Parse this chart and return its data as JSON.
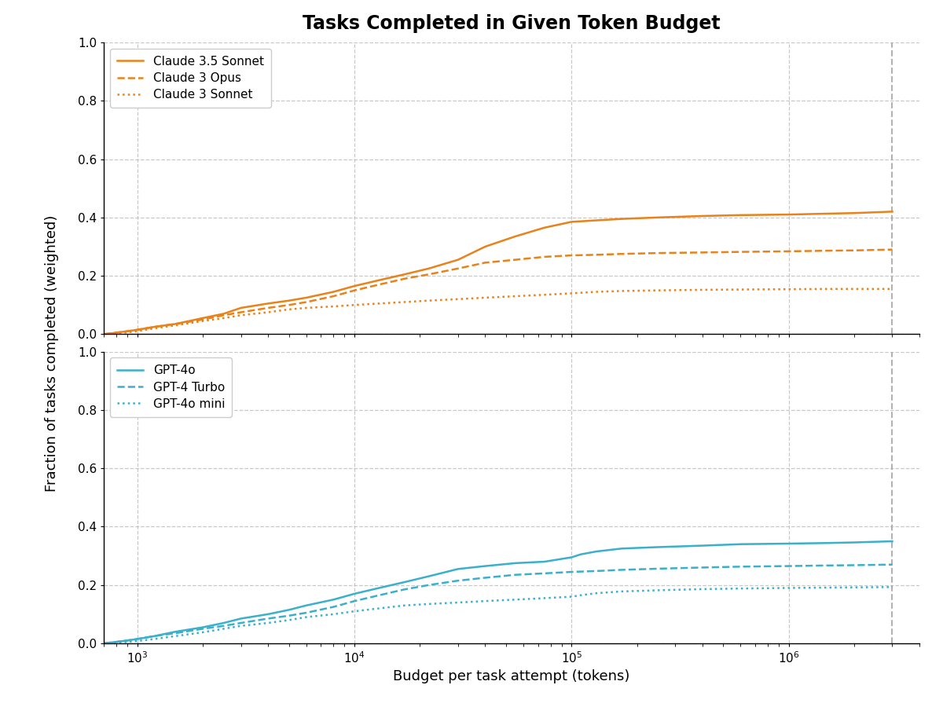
{
  "title": "Tasks Completed in Given Token Budget",
  "xlabel": "Budget per task attempt (tokens)",
  "ylabel": "Fraction of tasks completed (weighted)",
  "xlim_log": [
    700,
    4000000
  ],
  "ylim": [
    0.0,
    1.0
  ],
  "vline_x": 3000000,
  "background_color": "#ffffff",
  "grid_color": "#bbbbbb",
  "orange_color": "#e8821a",
  "blue_color": "#3ab0cc",
  "top_legend": [
    "Claude 3.5 Sonnet",
    "Claude 3 Opus",
    "Claude 3 Sonnet"
  ],
  "bottom_legend": [
    "GPT-4o",
    "GPT-4 Turbo",
    "GPT-4o mini"
  ],
  "top_solid_x": [
    700,
    800,
    900,
    1000,
    1200,
    1500,
    2000,
    2500,
    3000,
    4000,
    5000,
    6000,
    8000,
    10000,
    13000,
    17000,
    22000,
    30000,
    40000,
    55000,
    75000,
    100000,
    130000,
    170000,
    250000,
    400000,
    600000,
    1000000,
    1500000,
    2000000,
    3000000
  ],
  "top_solid_y": [
    0.0,
    0.005,
    0.01,
    0.015,
    0.025,
    0.035,
    0.055,
    0.07,
    0.09,
    0.105,
    0.115,
    0.125,
    0.145,
    0.165,
    0.185,
    0.205,
    0.225,
    0.255,
    0.3,
    0.335,
    0.365,
    0.385,
    0.39,
    0.395,
    0.4,
    0.405,
    0.408,
    0.41,
    0.413,
    0.415,
    0.42
  ],
  "top_dashed_x": [
    700,
    800,
    900,
    1000,
    1200,
    1500,
    2000,
    2500,
    3000,
    4000,
    5000,
    6000,
    8000,
    10000,
    13000,
    17000,
    22000,
    30000,
    40000,
    55000,
    75000,
    100000,
    130000,
    170000,
    250000,
    400000,
    600000,
    1000000,
    1500000,
    2000000,
    3000000
  ],
  "top_dashed_y": [
    0.0,
    0.005,
    0.01,
    0.015,
    0.025,
    0.035,
    0.05,
    0.065,
    0.075,
    0.09,
    0.1,
    0.11,
    0.13,
    0.15,
    0.17,
    0.19,
    0.205,
    0.225,
    0.245,
    0.255,
    0.265,
    0.27,
    0.272,
    0.275,
    0.278,
    0.28,
    0.282,
    0.284,
    0.286,
    0.287,
    0.29
  ],
  "top_dotted_x": [
    700,
    800,
    900,
    1000,
    1200,
    1500,
    2000,
    2500,
    3000,
    4000,
    5000,
    6000,
    8000,
    10000,
    13000,
    17000,
    22000,
    30000,
    40000,
    55000,
    75000,
    100000,
    130000,
    170000,
    250000,
    400000,
    600000,
    1000000,
    1500000,
    2000000,
    3000000
  ],
  "top_dotted_y": [
    0.0,
    0.003,
    0.006,
    0.01,
    0.02,
    0.03,
    0.045,
    0.055,
    0.065,
    0.075,
    0.085,
    0.09,
    0.095,
    0.1,
    0.105,
    0.11,
    0.115,
    0.12,
    0.125,
    0.13,
    0.135,
    0.14,
    0.145,
    0.148,
    0.15,
    0.152,
    0.153,
    0.154,
    0.155,
    0.155,
    0.155
  ],
  "bot_solid_x": [
    700,
    800,
    900,
    1000,
    1200,
    1500,
    2000,
    2500,
    3000,
    4000,
    5000,
    6000,
    8000,
    10000,
    13000,
    17000,
    22000,
    30000,
    40000,
    55000,
    75000,
    100000,
    110000,
    130000,
    170000,
    250000,
    400000,
    600000,
    1000000,
    1500000,
    2000000,
    3000000
  ],
  "bot_solid_y": [
    0.0,
    0.005,
    0.01,
    0.015,
    0.025,
    0.04,
    0.055,
    0.07,
    0.085,
    0.1,
    0.115,
    0.13,
    0.15,
    0.17,
    0.19,
    0.21,
    0.23,
    0.255,
    0.265,
    0.275,
    0.28,
    0.295,
    0.305,
    0.315,
    0.325,
    0.33,
    0.335,
    0.34,
    0.342,
    0.344,
    0.346,
    0.35
  ],
  "bot_dashed_x": [
    700,
    800,
    900,
    1000,
    1200,
    1500,
    2000,
    2500,
    3000,
    4000,
    5000,
    6000,
    8000,
    10000,
    13000,
    17000,
    22000,
    30000,
    40000,
    55000,
    75000,
    100000,
    130000,
    170000,
    250000,
    400000,
    600000,
    1000000,
    1500000,
    2000000,
    3000000
  ],
  "bot_dashed_y": [
    0.0,
    0.005,
    0.01,
    0.015,
    0.025,
    0.035,
    0.05,
    0.06,
    0.07,
    0.085,
    0.095,
    0.105,
    0.125,
    0.145,
    0.165,
    0.185,
    0.2,
    0.215,
    0.225,
    0.235,
    0.24,
    0.245,
    0.248,
    0.252,
    0.256,
    0.26,
    0.263,
    0.265,
    0.267,
    0.268,
    0.27
  ],
  "bot_dotted_x": [
    700,
    800,
    900,
    1000,
    1200,
    1500,
    2000,
    2500,
    3000,
    4000,
    5000,
    6000,
    8000,
    10000,
    13000,
    17000,
    22000,
    30000,
    40000,
    55000,
    75000,
    100000,
    110000,
    130000,
    170000,
    250000,
    400000,
    600000,
    1000000,
    1500000,
    2000000,
    3000000
  ],
  "bot_dotted_y": [
    0.0,
    0.002,
    0.005,
    0.008,
    0.015,
    0.025,
    0.038,
    0.05,
    0.06,
    0.07,
    0.08,
    0.09,
    0.1,
    0.11,
    0.12,
    0.13,
    0.135,
    0.14,
    0.145,
    0.15,
    0.155,
    0.16,
    0.165,
    0.172,
    0.178,
    0.182,
    0.186,
    0.188,
    0.19,
    0.191,
    0.192,
    0.193
  ]
}
